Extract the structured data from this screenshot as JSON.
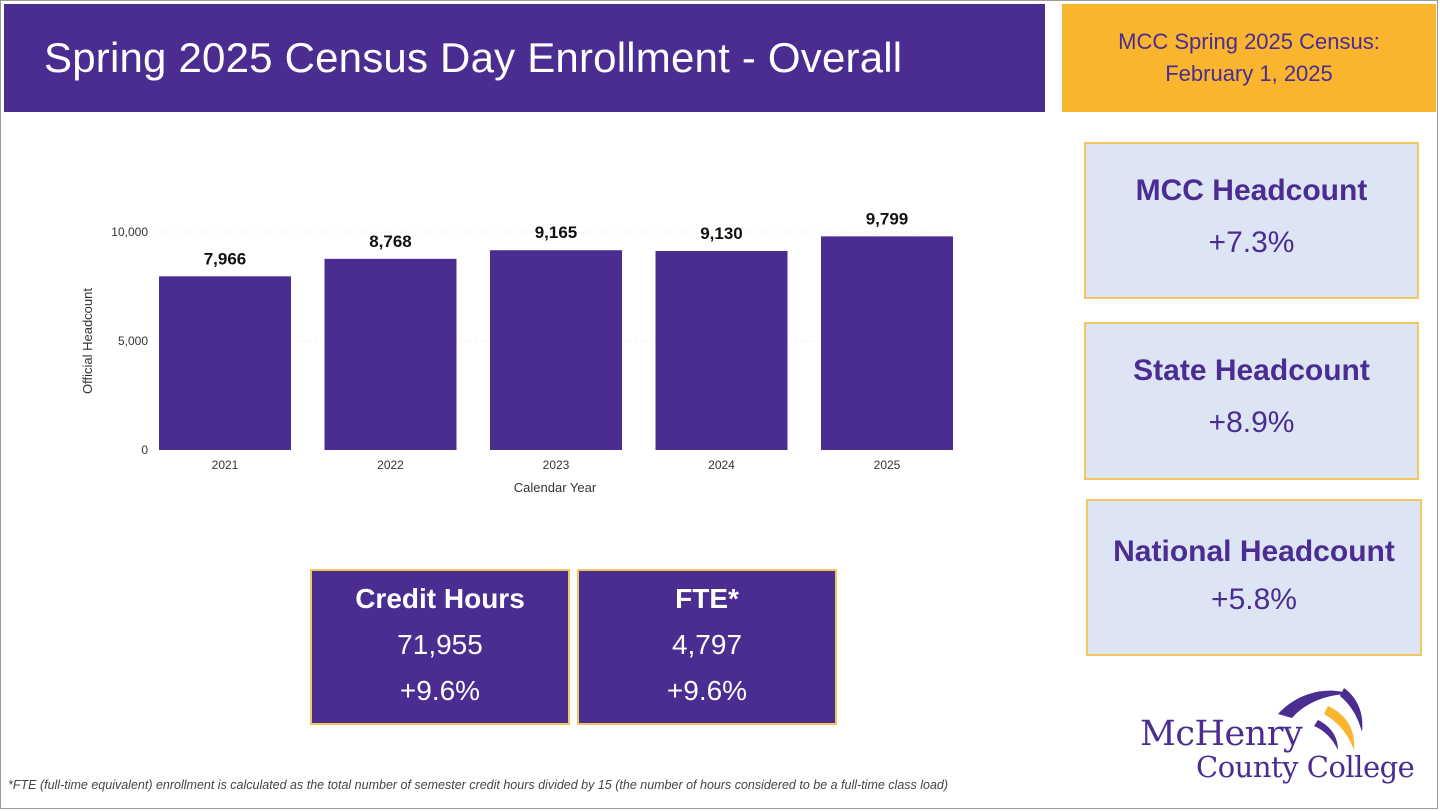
{
  "header": {
    "title": "Spring 2025 Census Day Enrollment - Overall",
    "census_line1": "MCC Spring 2025 Census:",
    "census_line2": "February 1, 2025"
  },
  "kpis": [
    {
      "title": "MCC Headcount",
      "value": "+7.3%"
    },
    {
      "title": "State Headcount",
      "value": "+8.9%"
    },
    {
      "title": "National Headcount",
      "value": "+5.8%"
    }
  ],
  "stats": [
    {
      "title": "Credit Hours",
      "value": "71,955",
      "change": "+9.6%"
    },
    {
      "title": "FTE*",
      "value": "4,797",
      "change": "+9.6%"
    }
  ],
  "footnote": "*FTE (full-time equivalent) enrollment is calculated as the total number of semester credit hours divided by 15 (the number of hours considered to be a full-time class load)",
  "logo": {
    "line1": "McHenry",
    "line2": "County College"
  },
  "colors": {
    "purple": "#4b2c91",
    "gold": "#f8b52d",
    "kpi_bg": "#dde4f3"
  },
  "chart_data": {
    "type": "bar",
    "categories": [
      "2021",
      "2022",
      "2023",
      "2024",
      "2025"
    ],
    "values": [
      7966,
      8768,
      9165,
      9130,
      9799
    ],
    "value_labels": [
      "7,966",
      "8,768",
      "9,165",
      "9,130",
      "9,799"
    ],
    "xlabel": "Calendar Year",
    "ylabel": "Official Headcount",
    "yticks": [
      "0",
      "5,000",
      "10,000"
    ],
    "ytick_values": [
      0,
      5000,
      10000
    ],
    "ylim": [
      0,
      10000
    ],
    "grid": true,
    "bar_color": "#4b2c91"
  }
}
